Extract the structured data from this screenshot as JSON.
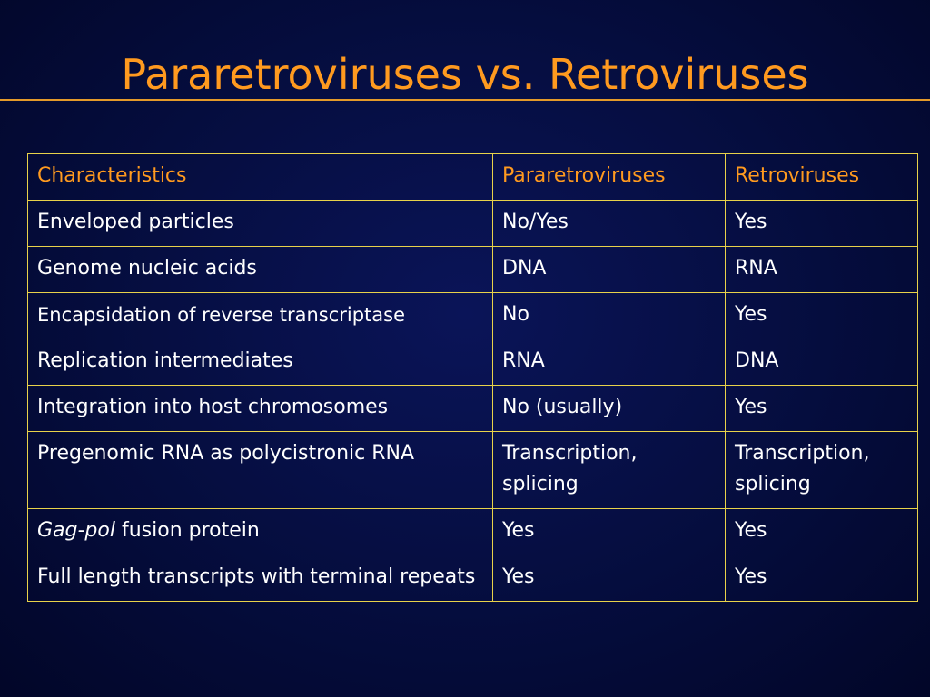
{
  "title": "Pararetroviruses vs. Retroviruses",
  "table": {
    "header": [
      "Characteristics",
      "Pararetroviruses",
      "Retroviruses"
    ],
    "rows": [
      {
        "characteristic": "Enveloped particles",
        "pararetroviruses": "No/Yes",
        "retroviruses": "Yes"
      },
      {
        "characteristic": "Genome nucleic acids",
        "pararetroviruses": "DNA",
        "retroviruses": "RNA"
      },
      {
        "characteristic": "Encapsidation of reverse transcriptase",
        "pararetroviruses": "No",
        "retroviruses": "Yes"
      },
      {
        "characteristic": "Replication intermediates",
        "pararetroviruses": "RNA",
        "retroviruses": "DNA"
      },
      {
        "characteristic": "Integration into host chromosomes",
        "pararetroviruses": "No (usually)",
        "retroviruses": "Yes"
      },
      {
        "characteristic": "Pregenomic RNA as polycistronic RNA",
        "pararetroviruses": "Transcription, splicing",
        "retroviruses": "Transcription, splicing"
      },
      {
        "characteristic_italic": "Gag-pol",
        "characteristic_rest": " fusion protein",
        "pararetroviruses": "Yes",
        "retroviruses": "Yes"
      },
      {
        "characteristic": "Full length transcripts with terminal repeats",
        "pararetroviruses": "Yes",
        "retroviruses": "Yes"
      }
    ]
  },
  "colors": {
    "background": "#050d3e",
    "title": "#ff9a1f",
    "header_text": "#ff9a1f",
    "body_text": "#ffffff",
    "table_border": "#e8d24a",
    "title_rule": "#e49a2a"
  }
}
